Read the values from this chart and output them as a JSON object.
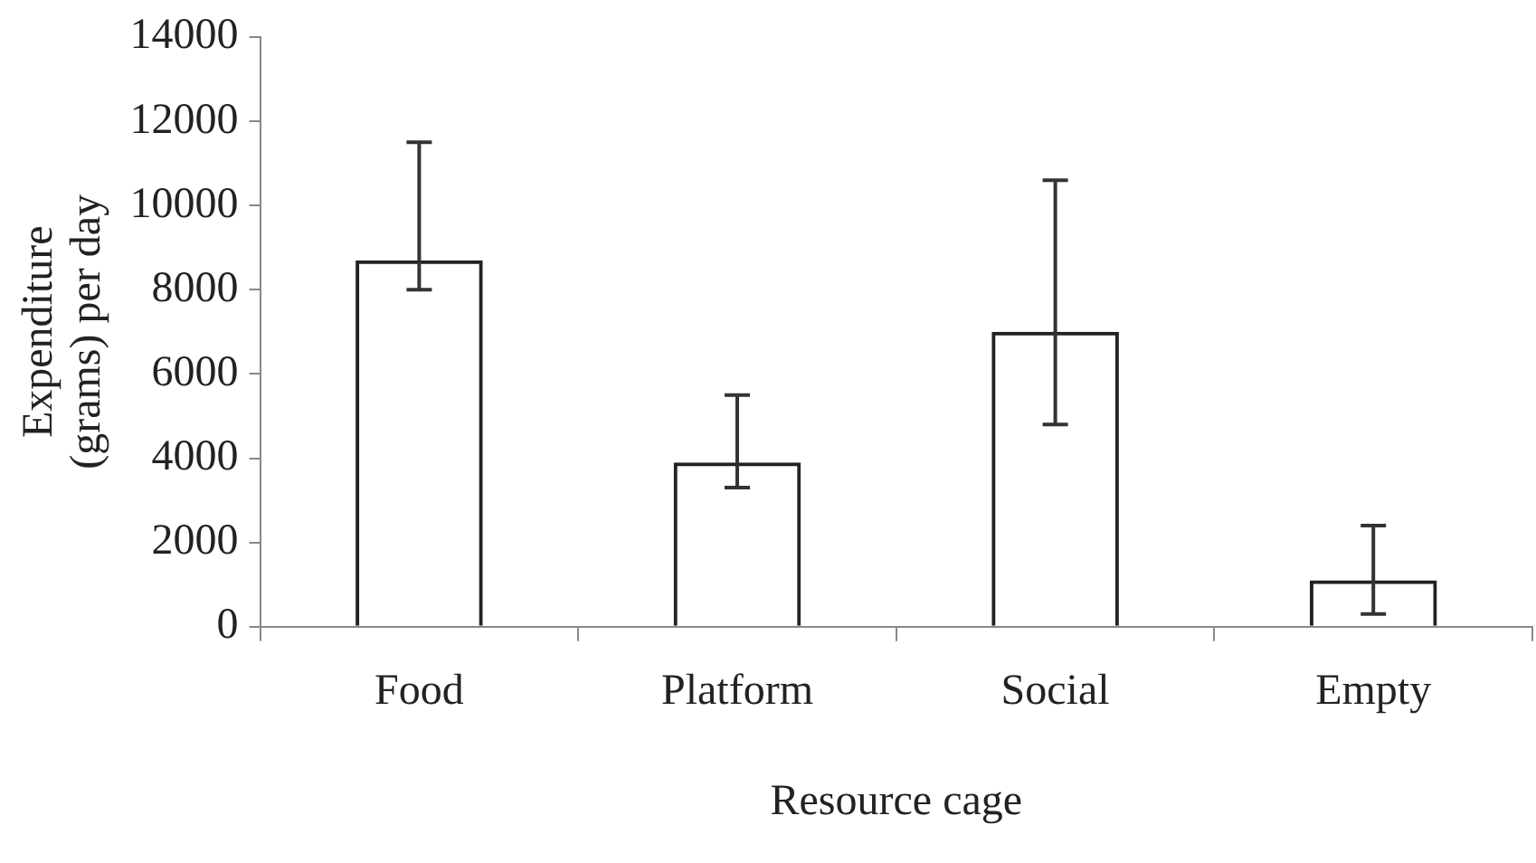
{
  "chart_data": {
    "type": "bar",
    "xlabel": "Resource cage",
    "ylabel": "Expenditure (grams) per day",
    "categories": [
      "Food",
      "Platform",
      "Social",
      "Empty"
    ],
    "values": [
      8700,
      3900,
      7000,
      1100
    ],
    "errors": [
      [
        8000,
        11500
      ],
      [
        3300,
        5500
      ],
      [
        4800,
        10600
      ],
      [
        300,
        2400
      ]
    ],
    "color": "#222222",
    "ylim": [
      0,
      14000
    ],
    "yticks": [
      0,
      2000,
      4000,
      6000,
      8000,
      10000,
      12000,
      14000
    ],
    "grid": false,
    "legend": false
  }
}
